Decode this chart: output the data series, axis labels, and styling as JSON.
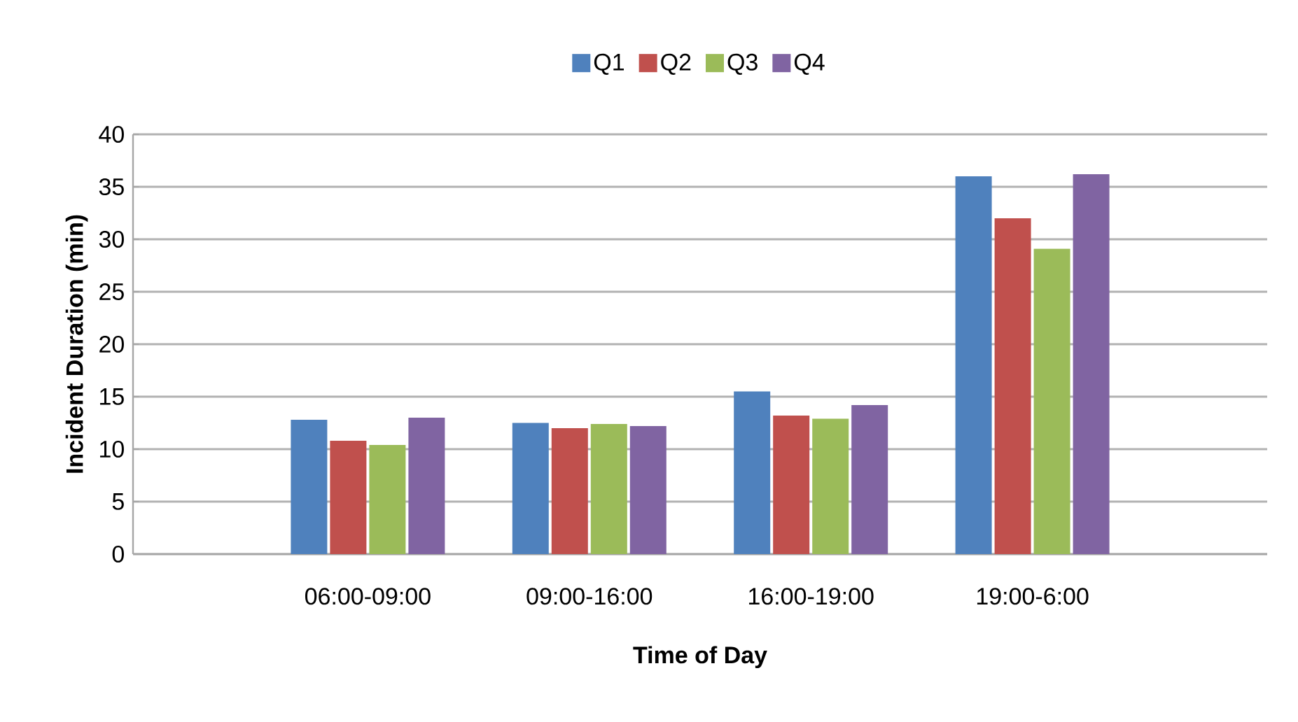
{
  "chart_data": {
    "type": "bar",
    "xlabel": "Time of Day",
    "ylabel": "Incident Duration (min)",
    "categories": [
      "06:00-09:00",
      "09:00-16:00",
      "16:00-19:00",
      "19:00-6:00"
    ],
    "series": [
      {
        "name": "Q1",
        "color": "#4f81bd",
        "values": [
          12.8,
          12.5,
          15.5,
          36.0
        ]
      },
      {
        "name": "Q2",
        "color": "#c0504d",
        "values": [
          10.8,
          12.0,
          13.2,
          32.0
        ]
      },
      {
        "name": "Q3",
        "color": "#9bbb59",
        "values": [
          10.4,
          12.4,
          12.9,
          29.1
        ]
      },
      {
        "name": "Q4",
        "color": "#8064a2",
        "values": [
          13.0,
          12.2,
          14.2,
          36.2
        ]
      }
    ],
    "ylim": [
      0,
      40
    ],
    "yticks": [
      0,
      5,
      10,
      15,
      20,
      25,
      30,
      35,
      40
    ],
    "grid": "y",
    "legend": "top"
  }
}
